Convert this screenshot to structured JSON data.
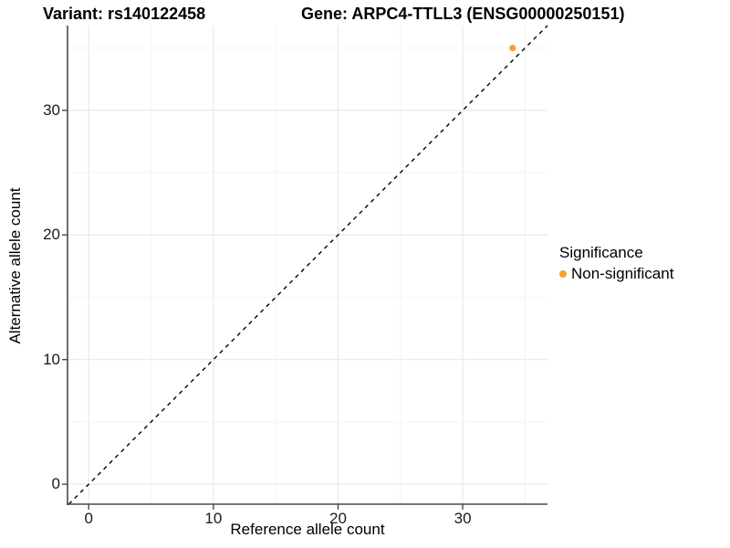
{
  "title": {
    "variant": "Variant: rs140122458",
    "gene": "Gene: ARPC4-TTLL3 (ENSG00000250151)"
  },
  "chart_data": {
    "type": "scatter",
    "title": "Variant: rs140122458    Gene: ARPC4-TTLL3 (ENSG00000250151)",
    "xlabel": "Reference allele count",
    "ylabel": "Alternative allele count",
    "xlim": [
      -1.7,
      36.8
    ],
    "ylim": [
      -1.6,
      36.8
    ],
    "x_ticks": [
      0,
      10,
      20,
      30
    ],
    "y_ticks": [
      0,
      10,
      20,
      30
    ],
    "x_minor_ticks": [
      5,
      15,
      25,
      35
    ],
    "y_minor_ticks": [
      5,
      15,
      25,
      35
    ],
    "grid": true,
    "colors": {
      "major_grid": "#e9e9e9",
      "minor_grid": "#f4f4f4",
      "axis_line": "#4a4a4a",
      "identity_line": "#000000",
      "point": "#f8a02c"
    },
    "identity_line": {
      "style": "dashed",
      "slope": 1,
      "intercept": 0
    },
    "series": [
      {
        "name": "Non-significant",
        "color": "#f8a02c",
        "points": [
          {
            "x": 34,
            "y": 35
          }
        ]
      }
    ],
    "legend": {
      "title": "Significance",
      "position": "right",
      "items": [
        {
          "label": "Non-significant",
          "color": "#f8a02c"
        }
      ]
    }
  }
}
